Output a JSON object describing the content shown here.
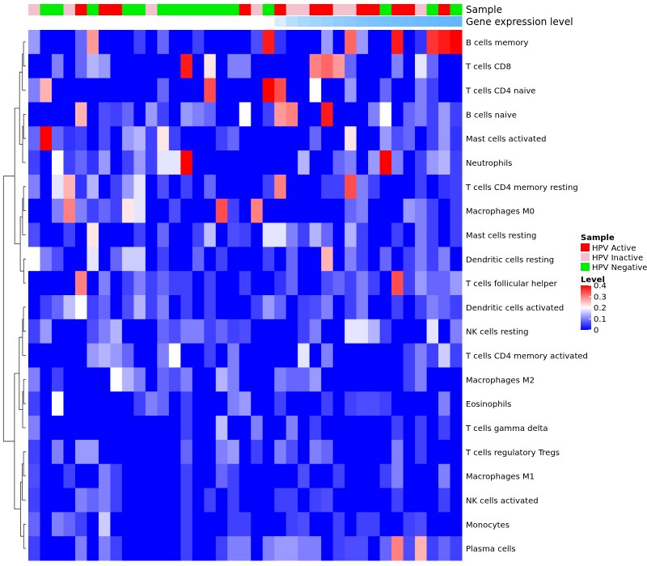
{
  "chart_data": {
    "type": "heatmap",
    "title": "",
    "annotation_tracks": [
      "Sample",
      "Gene expression level"
    ],
    "rows": [
      "B cells memory",
      "T cells CD8",
      "T cells CD4 naive",
      "B cells naive",
      "Mast cells activated",
      "Neutrophils",
      "T cells CD4 memory resting",
      "Macrophages M0",
      "Mast cells resting",
      "Dendritic cells resting",
      "T cells follicular helper",
      "Dendritic cells activated",
      "NK cells resting",
      "T cells CD4 memory activated",
      "Macrophages M2",
      "Eosinophils",
      "T cells gamma delta",
      "T cells regulatory  Tregs",
      "Macrophages M1",
      "NK cells activated",
      "Monocytes",
      "Plasma cells"
    ],
    "sample_groups": [
      "Inactive",
      "Negative",
      "Negative",
      "Inactive",
      "Active",
      "Negative",
      "Active",
      "Active",
      "Negative",
      "Negative",
      "Inactive",
      "Negative",
      "Negative",
      "Negative",
      "Negative",
      "Negative",
      "Negative",
      "Negative",
      "Active",
      "Inactive",
      "Negative",
      "Active",
      "Inactive",
      "Inactive",
      "Active",
      "Active",
      "Inactive",
      "Inactive",
      "Active",
      "Active",
      "Negative",
      "Active",
      "Active",
      "Inactive",
      "Negative",
      "Active",
      "Negative"
    ],
    "expression_levels": [
      0,
      0,
      0,
      0,
      0,
      0,
      0,
      0,
      0,
      0,
      0,
      0,
      0,
      0,
      0,
      0,
      0,
      0,
      0,
      0,
      0,
      0.25,
      0.45,
      0.55,
      0.6,
      0.65,
      0.7,
      0.75,
      0.8,
      0.85,
      0.88,
      0.9,
      0.92,
      0.94,
      0.96,
      0.98,
      1
    ],
    "values": [
      [
        0.12,
        0,
        0,
        0,
        0.08,
        0.28,
        0,
        0,
        0,
        0.05,
        0,
        0.08,
        0,
        0,
        0.05,
        0,
        0,
        0,
        0,
        0.06,
        0.38,
        0.04,
        0,
        0,
        0,
        0.12,
        0,
        0.32,
        0.12,
        0,
        0,
        0.38,
        0,
        0.04,
        0.36,
        0.38,
        0.4
      ],
      [
        0,
        0,
        0.1,
        0,
        0.08,
        0.14,
        0.12,
        0,
        0,
        0,
        0,
        0,
        0,
        0.38,
        0,
        0.22,
        0,
        0.1,
        0.1,
        0,
        0,
        0,
        0,
        0,
        0.3,
        0.32,
        0.28,
        0.08,
        0,
        0,
        0,
        0.1,
        0,
        0.18,
        0.08,
        0,
        0
      ],
      [
        0.1,
        0.26,
        0,
        0,
        0,
        0,
        0,
        0,
        0,
        0,
        0,
        0.08,
        0,
        0,
        0,
        0.34,
        0,
        0,
        0,
        0,
        0.4,
        0.34,
        0,
        0,
        0.2,
        0,
        0,
        0.12,
        0,
        0,
        0.08,
        0,
        0,
        0.1,
        0.05,
        0,
        0
      ],
      [
        0,
        0,
        0,
        0,
        0.26,
        0,
        0.06,
        0.05,
        0.08,
        0,
        0.12,
        0.05,
        0,
        0.12,
        0.1,
        0.08,
        0,
        0,
        0.2,
        0,
        0.05,
        0.28,
        0.3,
        0,
        0,
        0.38,
        0,
        0,
        0,
        0.1,
        0.2,
        0,
        0.08,
        0.1,
        0.05,
        0.12,
        0.05
      ],
      [
        0.08,
        0.4,
        0.08,
        0.04,
        0.05,
        0,
        0.06,
        0,
        0.12,
        0.14,
        0.05,
        0.22,
        0.05,
        0,
        0,
        0,
        0.05,
        0.08,
        0,
        0,
        0,
        0,
        0,
        0,
        0.08,
        0,
        0,
        0.22,
        0,
        0,
        0.12,
        0.06,
        0.08,
        0,
        0.05,
        0.12,
        0.04
      ],
      [
        0.05,
        0,
        0.2,
        0.05,
        0.08,
        0.04,
        0.12,
        0,
        0.05,
        0.12,
        0.05,
        0.18,
        0.18,
        0.4,
        0,
        0,
        0,
        0,
        0,
        0,
        0,
        0,
        0,
        0.14,
        0,
        0,
        0.08,
        0.1,
        0,
        0.12,
        0.4,
        0.1,
        0,
        0.05,
        0.12,
        0.14,
        0.05
      ],
      [
        0.1,
        0,
        0.18,
        0.26,
        0.04,
        0.14,
        0,
        0.05,
        0.12,
        0.18,
        0,
        0.06,
        0,
        0.05,
        0,
        0.08,
        0,
        0,
        0,
        0,
        0.05,
        0.3,
        0,
        0,
        0,
        0.05,
        0.05,
        0.34,
        0.1,
        0.05,
        0,
        0,
        0,
        0.05,
        0,
        0.04,
        0.05
      ],
      [
        0,
        0,
        0.1,
        0.3,
        0.1,
        0.05,
        0.08,
        0.05,
        0.22,
        0.18,
        0,
        0,
        0.06,
        0,
        0,
        0,
        0.34,
        0.05,
        0,
        0.3,
        0,
        0,
        0,
        0,
        0,
        0,
        0,
        0.08,
        0.1,
        0,
        0,
        0,
        0.12,
        0.1,
        0.05,
        0,
        0.05
      ],
      [
        0.06,
        0,
        0,
        0.05,
        0,
        0.22,
        0,
        0,
        0,
        0.05,
        0,
        0.08,
        0,
        0,
        0.05,
        0.15,
        0,
        0.06,
        0.05,
        0,
        0.18,
        0.18,
        0.1,
        0.05,
        0.14,
        0.08,
        0,
        0.14,
        0.05,
        0,
        0,
        0.05,
        0,
        0.1,
        0.05,
        0,
        0.05
      ],
      [
        0.2,
        0.1,
        0.06,
        0,
        0,
        0.18,
        0,
        0.08,
        0.16,
        0.16,
        0,
        0.05,
        0,
        0,
        0.08,
        0,
        0.05,
        0,
        0,
        0,
        0.05,
        0,
        0.08,
        0,
        0,
        0.26,
        0,
        0.1,
        0.05,
        0,
        0.08,
        0,
        0.05,
        0.1,
        0.05,
        0.1,
        0
      ],
      [
        0,
        0,
        0,
        0,
        0.3,
        0,
        0.1,
        0,
        0.05,
        0.1,
        0.05,
        0.08,
        0.05,
        0.05,
        0,
        0.05,
        0,
        0,
        0.05,
        0,
        0,
        0.04,
        0.08,
        0,
        0,
        0.06,
        0.08,
        0.05,
        0.1,
        0.05,
        0,
        0.34,
        0.05,
        0.12,
        0.08,
        0.08,
        0.12
      ],
      [
        0,
        0.05,
        0.08,
        0.15,
        0.2,
        0.05,
        0.08,
        0,
        0.06,
        0.14,
        0.05,
        0.1,
        0,
        0.05,
        0,
        0.05,
        0,
        0,
        0,
        0.05,
        0.12,
        0.08,
        0,
        0.05,
        0.06,
        0.1,
        0,
        0.05,
        0.1,
        0,
        0,
        0.05,
        0,
        0.05,
        0.1,
        0.08,
        0.05
      ],
      [
        0.05,
        0.12,
        0,
        0,
        0,
        0.06,
        0.1,
        0.14,
        0,
        0,
        0,
        0.08,
        0.06,
        0.1,
        0.1,
        0.05,
        0.08,
        0.05,
        0.06,
        0,
        0,
        0,
        0,
        0.05,
        0.1,
        0,
        0,
        0.18,
        0.18,
        0.14,
        0.05,
        0,
        0,
        0,
        0.18,
        0,
        0.1
      ],
      [
        0,
        0,
        0,
        0,
        0,
        0.12,
        0.14,
        0.12,
        0.08,
        0,
        0,
        0.1,
        0.2,
        0,
        0,
        0.05,
        0,
        0.1,
        0,
        0,
        0,
        0,
        0,
        0.18,
        0,
        0.1,
        0,
        0,
        0,
        0,
        0,
        0,
        0.05,
        0.1,
        0.05,
        0.16,
        0.05
      ],
      [
        0.1,
        0,
        0.05,
        0,
        0,
        0,
        0,
        0.2,
        0.14,
        0.1,
        0,
        0.08,
        0.06,
        0.1,
        0,
        0,
        0.14,
        0.1,
        0,
        0,
        0,
        0.1,
        0.08,
        0.08,
        0.12,
        0,
        0,
        0,
        0,
        0,
        0,
        0,
        0.05,
        0.1,
        0,
        0,
        0
      ],
      [
        0.05,
        0,
        0.2,
        0,
        0,
        0,
        0,
        0,
        0,
        0.05,
        0.1,
        0.08,
        0,
        0.05,
        0,
        0,
        0,
        0.1,
        0.12,
        0,
        0,
        0.05,
        0,
        0,
        0,
        0.05,
        0,
        0.05,
        0.06,
        0.06,
        0.05,
        0,
        0,
        0,
        0,
        0.1,
        0
      ],
      [
        0.1,
        0,
        0,
        0,
        0,
        0,
        0,
        0,
        0,
        0,
        0,
        0,
        0,
        0.05,
        0,
        0,
        0.15,
        0,
        0,
        0.1,
        0,
        0,
        0.1,
        0,
        0.05,
        0,
        0,
        0,
        0,
        0,
        0,
        0.05,
        0,
        0.05,
        0,
        0.05,
        0
      ],
      [
        0.05,
        0,
        0.1,
        0,
        0.12,
        0.12,
        0,
        0,
        0,
        0,
        0,
        0,
        0,
        0.08,
        0,
        0,
        0.1,
        0.12,
        0,
        0.05,
        0,
        0.1,
        0.06,
        0,
        0.1,
        0.08,
        0,
        0,
        0,
        0,
        0,
        0.1,
        0,
        0.05,
        0,
        0,
        0
      ],
      [
        0.06,
        0,
        0,
        0.05,
        0,
        0,
        0.1,
        0.05,
        0,
        0,
        0,
        0,
        0,
        0.05,
        0,
        0,
        0.08,
        0.05,
        0,
        0,
        0,
        0,
        0,
        0.06,
        0,
        0,
        0.05,
        0,
        0,
        0,
        0.05,
        0.1,
        0,
        0,
        0,
        0.1,
        0
      ],
      [
        0.05,
        0,
        0,
        0,
        0.1,
        0.08,
        0.1,
        0.05,
        0,
        0,
        0,
        0,
        0,
        0.05,
        0,
        0.05,
        0,
        0.05,
        0,
        0,
        0,
        0.05,
        0.05,
        0,
        0.05,
        0.06,
        0,
        0,
        0,
        0,
        0,
        0.05,
        0,
        0,
        0,
        0.05,
        0
      ],
      [
        0.08,
        0,
        0.1,
        0.08,
        0.05,
        0,
        0.16,
        0,
        0,
        0,
        0,
        0,
        0,
        0.05,
        0,
        0,
        0,
        0.05,
        0.05,
        0,
        0,
        0,
        0.05,
        0.06,
        0,
        0,
        0.05,
        0,
        0.05,
        0.05,
        0,
        0,
        0.05,
        0.06,
        0,
        0,
        0
      ],
      [
        0.05,
        0,
        0,
        0,
        0.1,
        0,
        0.1,
        0.05,
        0,
        0,
        0,
        0,
        0,
        0.05,
        0,
        0,
        0.05,
        0.1,
        0.1,
        0,
        0.1,
        0.12,
        0.12,
        0.1,
        0.1,
        0,
        0.05,
        0.06,
        0.06,
        0,
        0.08,
        0.3,
        0.06,
        0.26,
        0.05,
        0.08,
        0.05
      ]
    ],
    "legend": {
      "sample_title": "Sample",
      "sample_entries": [
        {
          "group": "Active",
          "label": "HPV Active",
          "color": "#ff0000"
        },
        {
          "group": "Inactive",
          "label": "HPV Inactive",
          "color": "#f4c2cf"
        },
        {
          "group": "Negative",
          "label": "HPV Negative",
          "color": "#00ee00"
        }
      ],
      "level_title": "Level",
      "level_ticks": [
        0,
        0.1,
        0.2,
        0.3,
        0.4
      ],
      "level_range": [
        0,
        0.4
      ],
      "level_colors": {
        "low": "#0000ff",
        "mid": "#ffffff",
        "high": "#ff0000"
      },
      "placement": "right"
    },
    "expression_colors": {
      "low": "#ffffff",
      "high": "#63b8ff"
    },
    "dendrogram": "rows, left side"
  }
}
